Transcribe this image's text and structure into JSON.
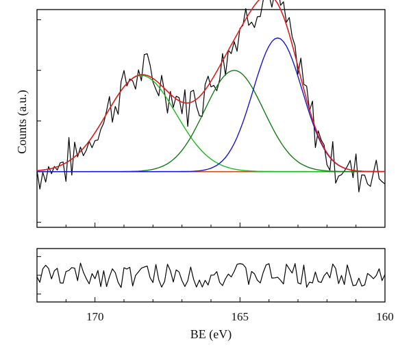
{
  "chart_data": {
    "type": "line",
    "xlabel": "BE (eV)",
    "ylabel": "Counts (a.u.)",
    "x_reversed": true,
    "xlim": [
      172,
      160
    ],
    "x_ticks": [
      170,
      165,
      160
    ],
    "x_tick_labels": [
      "170",
      "165",
      "160"
    ],
    "main_panel": {
      "ylim": [
        -0.55,
        1.6
      ],
      "grid": false,
      "series": [
        {
          "color": "#000000",
          "kind": "raw data (noisy)",
          "noise_amplitude": 0.2
        },
        {
          "color": "#e11b1b",
          "kind": "envelope fit",
          "components": "sum of three peaks"
        },
        {
          "color": "#19b919",
          "kind": "fitted peak",
          "center": 168.4,
          "fwhm": 2.8,
          "height": 0.95
        },
        {
          "color": "#137a13",
          "kind": "fitted peak",
          "center": 165.2,
          "fwhm": 2.4,
          "height": 1.0
        },
        {
          "color": "#1515cc",
          "kind": "fitted peak",
          "center": 163.7,
          "fwhm": 2.0,
          "height": 1.32
        },
        {
          "color": "#c84a16",
          "kind": "baseline",
          "value": 0
        }
      ]
    },
    "residual_panel": {
      "ylim": [
        -0.5,
        0.5
      ],
      "series": [
        {
          "color": "#000000",
          "kind": "residual",
          "noise_amplitude": 0.23
        }
      ]
    }
  }
}
